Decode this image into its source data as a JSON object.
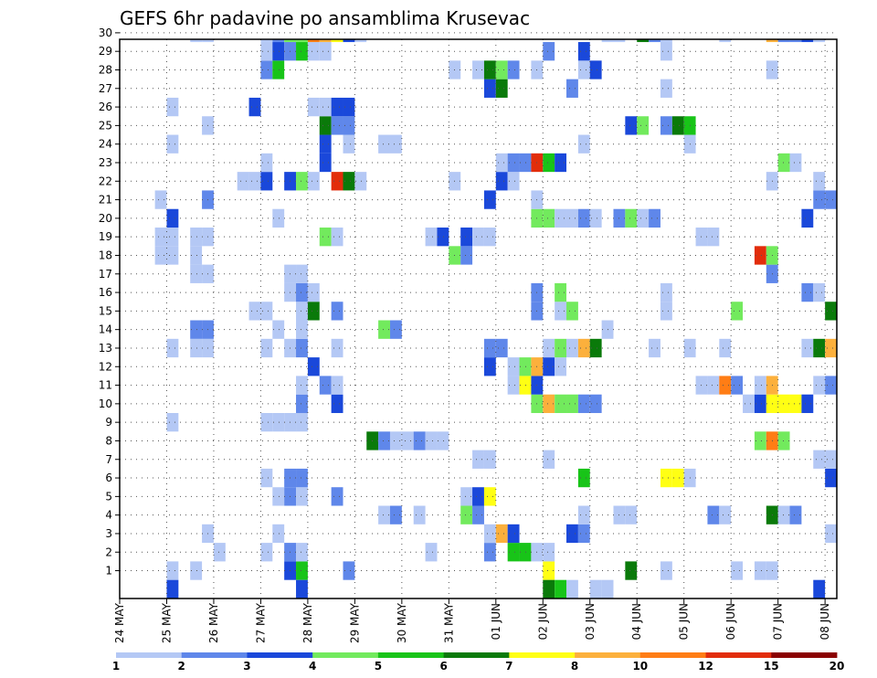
{
  "chart_data": {
    "type": "heatmap",
    "title": "GEFS 6hr padavine po ansamblima Krusevac",
    "xlabel": "",
    "ylabel": "",
    "members": [
      1,
      2,
      3,
      4,
      5,
      6,
      7,
      8,
      9,
      10,
      11,
      12,
      13,
      14,
      15,
      16,
      17,
      18,
      19,
      20,
      21,
      22,
      23,
      24,
      25,
      26,
      27,
      28,
      29,
      30
    ],
    "steps_per_day": 4,
    "x_range": [
      0,
      61
    ],
    "x_tick_labels": [
      "24 MAY",
      "25 MAY",
      "26 MAY",
      "27 MAY",
      "28 MAY",
      "29 MAY",
      "30 MAY",
      "31 MAY",
      "01 JUN",
      "02 JUN",
      "03 JUN",
      "04 JUN",
      "05 JUN",
      "06 JUN",
      "07 JUN",
      "08 JUN"
    ],
    "legend": {
      "labels": [
        "1",
        "2",
        "3",
        "4",
        "5",
        "6",
        "7",
        "8",
        "10",
        "12",
        "15",
        "20"
      ],
      "colors": [
        "#b4c8f5",
        "#5f87ea",
        "#1a48da",
        "#72ea5d",
        "#18c418",
        "#0a7a0a",
        "#ffff14",
        "#fcb03c",
        "#ff7d15",
        "#e22d0b",
        "#8b0000"
      ]
    },
    "grid": true,
    "cells": [
      [
        1,
        4,
        1
      ],
      [
        1,
        6,
        1
      ],
      [
        1,
        14,
        3
      ],
      [
        1,
        15,
        5
      ],
      [
        1,
        19,
        2
      ],
      [
        1,
        36,
        7
      ],
      [
        1,
        43,
        6
      ],
      [
        1,
        46,
        1
      ],
      [
        1,
        52,
        1
      ],
      [
        1,
        54,
        1
      ],
      [
        1,
        55,
        1
      ],
      [
        2,
        8,
        1
      ],
      [
        2,
        12,
        1
      ],
      [
        2,
        14,
        2
      ],
      [
        2,
        15,
        1
      ],
      [
        2,
        26,
        1
      ],
      [
        2,
        31,
        2
      ],
      [
        2,
        33,
        5
      ],
      [
        2,
        34,
        5
      ],
      [
        2,
        35,
        1
      ],
      [
        2,
        36,
        1
      ],
      [
        3,
        7,
        1
      ],
      [
        3,
        13,
        1
      ],
      [
        3,
        31,
        1
      ],
      [
        3,
        32,
        8
      ],
      [
        3,
        33,
        3
      ],
      [
        3,
        38,
        3
      ],
      [
        3,
        39,
        2
      ],
      [
        3,
        60,
        1
      ],
      [
        4,
        22,
        1
      ],
      [
        4,
        23,
        2
      ],
      [
        4,
        25,
        1
      ],
      [
        4,
        29,
        4
      ],
      [
        4,
        30,
        2
      ],
      [
        4,
        39,
        1
      ],
      [
        4,
        42,
        1
      ],
      [
        4,
        43,
        1
      ],
      [
        4,
        50,
        2
      ],
      [
        4,
        51,
        1
      ],
      [
        4,
        55,
        6
      ],
      [
        4,
        56,
        1
      ],
      [
        4,
        57,
        2
      ],
      [
        5,
        13,
        1
      ],
      [
        5,
        14,
        2
      ],
      [
        5,
        15,
        1
      ],
      [
        5,
        18,
        2
      ],
      [
        5,
        29,
        1
      ],
      [
        5,
        30,
        3
      ],
      [
        5,
        31,
        7
      ],
      [
        6,
        12,
        1
      ],
      [
        6,
        14,
        2
      ],
      [
        6,
        15,
        2
      ],
      [
        6,
        39,
        5
      ],
      [
        6,
        46,
        7
      ],
      [
        6,
        47,
        7
      ],
      [
        6,
        48,
        1
      ],
      [
        6,
        60,
        3
      ],
      [
        7,
        30,
        1
      ],
      [
        7,
        31,
        1
      ],
      [
        7,
        36,
        1
      ],
      [
        7,
        59,
        1
      ],
      [
        7,
        60,
        1
      ],
      [
        8,
        21,
        6
      ],
      [
        8,
        22,
        2
      ],
      [
        8,
        23,
        1
      ],
      [
        8,
        24,
        1
      ],
      [
        8,
        25,
        2
      ],
      [
        8,
        26,
        1
      ],
      [
        8,
        27,
        1
      ],
      [
        8,
        54,
        4
      ],
      [
        8,
        55,
        9
      ],
      [
        8,
        56,
        4
      ],
      [
        9,
        4,
        1
      ],
      [
        9,
        12,
        1
      ],
      [
        9,
        13,
        1
      ],
      [
        9,
        14,
        1
      ],
      [
        9,
        15,
        1
      ],
      [
        10,
        15,
        2
      ],
      [
        10,
        18,
        3
      ],
      [
        10,
        35,
        4
      ],
      [
        10,
        36,
        8
      ],
      [
        10,
        37,
        4
      ],
      [
        10,
        38,
        4
      ],
      [
        10,
        39,
        2
      ],
      [
        10,
        40,
        2
      ],
      [
        10,
        53,
        1
      ],
      [
        10,
        54,
        3
      ],
      [
        10,
        55,
        7
      ],
      [
        10,
        56,
        7
      ],
      [
        10,
        57,
        7
      ],
      [
        10,
        58,
        3
      ],
      [
        11,
        15,
        1
      ],
      [
        11,
        17,
        2
      ],
      [
        11,
        18,
        1
      ],
      [
        11,
        33,
        1
      ],
      [
        11,
        34,
        7
      ],
      [
        11,
        35,
        3
      ],
      [
        11,
        49,
        1
      ],
      [
        11,
        50,
        1
      ],
      [
        11,
        51,
        9
      ],
      [
        11,
        52,
        2
      ],
      [
        11,
        54,
        1
      ],
      [
        11,
        55,
        8
      ],
      [
        11,
        59,
        1
      ],
      [
        11,
        60,
        2
      ],
      [
        12,
        16,
        3
      ],
      [
        12,
        31,
        3
      ],
      [
        12,
        33,
        1
      ],
      [
        12,
        34,
        4
      ],
      [
        12,
        35,
        8
      ],
      [
        12,
        36,
        3
      ],
      [
        12,
        37,
        1
      ],
      [
        13,
        4,
        1
      ],
      [
        13,
        6,
        1
      ],
      [
        13,
        7,
        1
      ],
      [
        13,
        12,
        1
      ],
      [
        13,
        14,
        1
      ],
      [
        13,
        15,
        2
      ],
      [
        13,
        18,
        1
      ],
      [
        13,
        31,
        2
      ],
      [
        13,
        32,
        2
      ],
      [
        13,
        36,
        1
      ],
      [
        13,
        37,
        4
      ],
      [
        13,
        38,
        1
      ],
      [
        13,
        39,
        8
      ],
      [
        13,
        40,
        6
      ],
      [
        13,
        45,
        1
      ],
      [
        13,
        48,
        1
      ],
      [
        13,
        51,
        1
      ],
      [
        13,
        58,
        1
      ],
      [
        13,
        59,
        6
      ],
      [
        13,
        60,
        8
      ],
      [
        14,
        6,
        2
      ],
      [
        14,
        7,
        2
      ],
      [
        14,
        13,
        1
      ],
      [
        14,
        15,
        1
      ],
      [
        14,
        22,
        4
      ],
      [
        14,
        23,
        2
      ],
      [
        14,
        41,
        1
      ],
      [
        15,
        11,
        1
      ],
      [
        15,
        12,
        1
      ],
      [
        15,
        15,
        1
      ],
      [
        15,
        16,
        6
      ],
      [
        15,
        18,
        2
      ],
      [
        15,
        35,
        2
      ],
      [
        15,
        37,
        1
      ],
      [
        15,
        38,
        4
      ],
      [
        15,
        46,
        1
      ],
      [
        15,
        52,
        4
      ],
      [
        15,
        60,
        6
      ],
      [
        16,
        14,
        1
      ],
      [
        16,
        15,
        2
      ],
      [
        16,
        16,
        1
      ],
      [
        16,
        35,
        2
      ],
      [
        16,
        37,
        4
      ],
      [
        16,
        46,
        1
      ],
      [
        16,
        58,
        2
      ],
      [
        16,
        59,
        1
      ],
      [
        17,
        6,
        1
      ],
      [
        17,
        7,
        1
      ],
      [
        17,
        14,
        1
      ],
      [
        17,
        15,
        1
      ],
      [
        17,
        55,
        2
      ],
      [
        18,
        3,
        1
      ],
      [
        18,
        4,
        1
      ],
      [
        18,
        6,
        1
      ],
      [
        18,
        28,
        4
      ],
      [
        18,
        29,
        2
      ],
      [
        18,
        54,
        10
      ],
      [
        18,
        55,
        4
      ],
      [
        19,
        3,
        1
      ],
      [
        19,
        4,
        1
      ],
      [
        19,
        6,
        1
      ],
      [
        19,
        7,
        1
      ],
      [
        19,
        17,
        4
      ],
      [
        19,
        18,
        1
      ],
      [
        19,
        26,
        1
      ],
      [
        19,
        27,
        3
      ],
      [
        19,
        29,
        3
      ],
      [
        19,
        30,
        1
      ],
      [
        19,
        31,
        1
      ],
      [
        19,
        49,
        1
      ],
      [
        19,
        50,
        1
      ],
      [
        20,
        4,
        3
      ],
      [
        20,
        13,
        1
      ],
      [
        20,
        35,
        4
      ],
      [
        20,
        36,
        4
      ],
      [
        20,
        37,
        1
      ],
      [
        20,
        38,
        1
      ],
      [
        20,
        39,
        2
      ],
      [
        20,
        40,
        1
      ],
      [
        20,
        42,
        2
      ],
      [
        20,
        43,
        4
      ],
      [
        20,
        44,
        1
      ],
      [
        20,
        45,
        2
      ],
      [
        20,
        58,
        3
      ],
      [
        21,
        3,
        1
      ],
      [
        21,
        7,
        2
      ],
      [
        21,
        31,
        3
      ],
      [
        21,
        35,
        1
      ],
      [
        21,
        59,
        2
      ],
      [
        21,
        60,
        2
      ],
      [
        22,
        10,
        1
      ],
      [
        22,
        11,
        1
      ],
      [
        22,
        12,
        3
      ],
      [
        22,
        14,
        3
      ],
      [
        22,
        15,
        4
      ],
      [
        22,
        16,
        1
      ],
      [
        22,
        18,
        10
      ],
      [
        22,
        19,
        6
      ],
      [
        22,
        20,
        1
      ],
      [
        22,
        28,
        1
      ],
      [
        22,
        32,
        3
      ],
      [
        22,
        33,
        1
      ],
      [
        22,
        55,
        1
      ],
      [
        22,
        59,
        1
      ],
      [
        23,
        12,
        1
      ],
      [
        23,
        17,
        3
      ],
      [
        23,
        32,
        1
      ],
      [
        23,
        33,
        2
      ],
      [
        23,
        34,
        2
      ],
      [
        23,
        35,
        10
      ],
      [
        23,
        36,
        5
      ],
      [
        23,
        37,
        3
      ],
      [
        23,
        56,
        4
      ],
      [
        23,
        57,
        1
      ],
      [
        24,
        4,
        1
      ],
      [
        24,
        17,
        3
      ],
      [
        24,
        19,
        1
      ],
      [
        24,
        22,
        1
      ],
      [
        24,
        23,
        1
      ],
      [
        24,
        39,
        1
      ],
      [
        24,
        48,
        1
      ],
      [
        25,
        7,
        1
      ],
      [
        25,
        17,
        6
      ],
      [
        25,
        18,
        2
      ],
      [
        25,
        19,
        2
      ],
      [
        25,
        43,
        3
      ],
      [
        25,
        44,
        4
      ],
      [
        25,
        46,
        2
      ],
      [
        25,
        47,
        6
      ],
      [
        25,
        48,
        5
      ],
      [
        26,
        4,
        1
      ],
      [
        26,
        11,
        3
      ],
      [
        26,
        16,
        1
      ],
      [
        26,
        17,
        1
      ],
      [
        26,
        18,
        3
      ],
      [
        26,
        19,
        3
      ],
      [
        27,
        31,
        3
      ],
      [
        27,
        32,
        6
      ],
      [
        27,
        38,
        2
      ],
      [
        27,
        46,
        1
      ],
      [
        28,
        12,
        2
      ],
      [
        28,
        13,
        5
      ],
      [
        28,
        28,
        1
      ],
      [
        28,
        30,
        1
      ],
      [
        28,
        31,
        6
      ],
      [
        28,
        32,
        4
      ],
      [
        28,
        33,
        2
      ],
      [
        28,
        35,
        1
      ],
      [
        28,
        39,
        1
      ],
      [
        28,
        40,
        3
      ],
      [
        28,
        55,
        1
      ],
      [
        29,
        12,
        1
      ],
      [
        29,
        13,
        3
      ],
      [
        29,
        14,
        2
      ],
      [
        29,
        15,
        5
      ],
      [
        29,
        16,
        1
      ],
      [
        29,
        17,
        1
      ],
      [
        29,
        36,
        2
      ],
      [
        29,
        39,
        3
      ],
      [
        29,
        46,
        1
      ],
      [
        30,
        6,
        1
      ],
      [
        30,
        7,
        1
      ],
      [
        30,
        12,
        1
      ],
      [
        30,
        13,
        2
      ],
      [
        30,
        14,
        4
      ],
      [
        30,
        15,
        4
      ],
      [
        30,
        16,
        9
      ],
      [
        30,
        17,
        8
      ],
      [
        30,
        18,
        7
      ],
      [
        30,
        19,
        3
      ],
      [
        30,
        20,
        1
      ],
      [
        30,
        41,
        1
      ],
      [
        30,
        42,
        1
      ],
      [
        30,
        44,
        6
      ],
      [
        30,
        45,
        2
      ],
      [
        30,
        46,
        1
      ],
      [
        30,
        51,
        1
      ],
      [
        30,
        55,
        8
      ],
      [
        30,
        56,
        2
      ],
      [
        30,
        57,
        2
      ],
      [
        30,
        58,
        3
      ],
      [
        30,
        59,
        1
      ],
      [
        0,
        4,
        3
      ],
      [
        0,
        15,
        3
      ],
      [
        0,
        36,
        6
      ],
      [
        0,
        37,
        5
      ],
      [
        0,
        38,
        1
      ],
      [
        0,
        40,
        1
      ],
      [
        0,
        41,
        1
      ],
      [
        0,
        59,
        3
      ]
    ]
  }
}
